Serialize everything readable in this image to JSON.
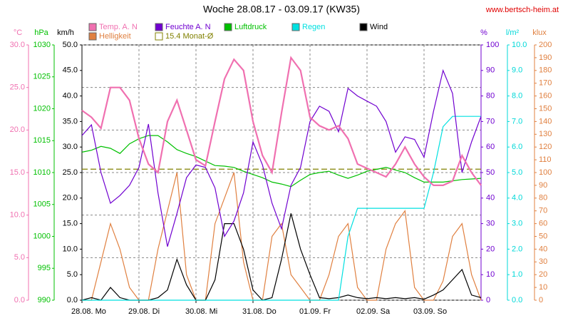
{
  "chart_data": {
    "type": "line",
    "title": "Woche 28.08.17 - 03.09.17 (KW35)",
    "source": "www.bertsch-heim.at",
    "grid": true,
    "xlim": [
      0,
      168
    ],
    "xticks": [
      {
        "value": 0,
        "label": "28.08. Mo"
      },
      {
        "value": 24,
        "label": "29.08. Di"
      },
      {
        "value": 48,
        "label": "30.08. Mi"
      },
      {
        "value": 72,
        "label": "31.08. Do"
      },
      {
        "value": 96,
        "label": "01.09. Fr"
      },
      {
        "value": 120,
        "label": "02.09. Sa"
      },
      {
        "value": 144,
        "label": "03.09. So"
      }
    ],
    "x": [
      0,
      4,
      8,
      12,
      16,
      20,
      24,
      28,
      32,
      36,
      40,
      44,
      48,
      52,
      56,
      60,
      64,
      68,
      72,
      76,
      80,
      84,
      88,
      92,
      96,
      100,
      104,
      108,
      112,
      116,
      120,
      124,
      128,
      132,
      136,
      140,
      144,
      148,
      152,
      156,
      160,
      164,
      168
    ],
    "axes": [
      {
        "label": "°C",
        "side": "left",
        "color": "#f070b0",
        "lim": [
          0,
          30
        ],
        "ticks": [
          {
            "value": 0,
            "label": "0.0"
          },
          {
            "value": 5,
            "label": "5.0"
          },
          {
            "value": 10,
            "label": "10.0"
          },
          {
            "value": 15,
            "label": "15.0"
          },
          {
            "value": 20,
            "label": "20.0"
          },
          {
            "value": 25,
            "label": "25.0"
          },
          {
            "value": 30,
            "label": "30.0"
          }
        ]
      },
      {
        "label": "hPa",
        "side": "left",
        "color": "#00c000",
        "lim": [
          990,
          1030
        ],
        "ticks": [
          990,
          995,
          1000,
          1005,
          1010,
          1015,
          1020,
          1025,
          1030
        ]
      },
      {
        "label": "km/h",
        "side": "left",
        "color": "#000000",
        "lim": [
          0,
          50
        ],
        "ticks": [
          {
            "value": 0,
            "label": "0.0"
          },
          {
            "value": 5,
            "label": "5.0"
          },
          {
            "value": 10,
            "label": "10.0"
          },
          {
            "value": 15,
            "label": "15.0"
          },
          {
            "value": 20,
            "label": "20.0"
          },
          {
            "value": 25,
            "label": "25.0"
          },
          {
            "value": 30,
            "label": "30.0"
          },
          {
            "value": 35,
            "label": "35.0"
          },
          {
            "value": 40,
            "label": "40.0"
          },
          {
            "value": 45,
            "label": "45.0"
          },
          {
            "value": 50,
            "label": "50.0"
          }
        ]
      },
      {
        "label": "%",
        "side": "right",
        "color": "#7000d0",
        "lim": [
          0,
          100
        ],
        "ticks": [
          0,
          10,
          20,
          30,
          40,
          50,
          60,
          70,
          80,
          90,
          100
        ]
      },
      {
        "label": "l/m²",
        "side": "right",
        "color": "#00d8d8",
        "lim": [
          0,
          10
        ],
        "ticks": [
          {
            "value": 0,
            "label": "0.0"
          },
          {
            "value": 1,
            "label": "1.0"
          },
          {
            "value": 2,
            "label": "2.0"
          },
          {
            "value": 3,
            "label": "3.0"
          },
          {
            "value": 4,
            "label": "4.0"
          },
          {
            "value": 5,
            "label": "5.0"
          },
          {
            "value": 6,
            "label": "6.0"
          },
          {
            "value": 7,
            "label": "7.0"
          },
          {
            "value": 8,
            "label": "8.0"
          },
          {
            "value": 9,
            "label": "9.0"
          },
          {
            "value": 10,
            "label": "10.0"
          }
        ]
      },
      {
        "label": "klux",
        "side": "right",
        "color": "#e08040",
        "lim": [
          0,
          200
        ],
        "ticks": [
          0,
          10,
          20,
          30,
          40,
          50,
          60,
          70,
          80,
          90,
          100,
          110,
          120,
          130,
          140,
          150,
          160,
          170,
          180,
          190,
          200
        ]
      }
    ],
    "series": [
      {
        "name": "Temp. A. N",
        "color": "#f070b0",
        "axis": "°C",
        "values": [
          22.3,
          21.5,
          20.2,
          25.0,
          25.0,
          23.5,
          19.0,
          16.0,
          15.0,
          21.0,
          23.5,
          20.0,
          16.5,
          15.8,
          21.0,
          26.0,
          28.3,
          27.0,
          21.0,
          17.0,
          15.0,
          22.0,
          28.5,
          27.0,
          21.5,
          20.5,
          20.0,
          20.5,
          19.0,
          16.0,
          15.5,
          15.0,
          14.5,
          16.0,
          18.0,
          16.0,
          14.5,
          13.5,
          13.5,
          14.0,
          17.0,
          15.0,
          13.5
        ]
      },
      {
        "name": "Feuchte A. N",
        "color": "#7000d0",
        "axis": "%",
        "values": [
          64.5,
          68.7,
          50,
          38,
          41,
          45,
          52,
          69,
          42,
          21,
          34,
          48,
          53,
          52,
          44,
          25,
          31,
          42,
          62,
          53,
          38,
          28,
          45,
          52,
          70,
          76,
          74,
          66,
          83,
          80,
          78,
          76,
          70,
          58,
          64,
          63,
          56,
          74,
          90,
          81,
          50,
          62,
          72
        ]
      },
      {
        "name": "Luftdruck",
        "color": "#00c000",
        "axis": "hPa",
        "values": [
          1013.2,
          1013.5,
          1014.1,
          1013.8,
          1013.0,
          1014.5,
          1015.3,
          1015.8,
          1015.8,
          1014.8,
          1013.6,
          1013.0,
          1012.5,
          1011.8,
          1011.1,
          1011.0,
          1010.8,
          1010.2,
          1009.7,
          1009.2,
          1008.5,
          1008.2,
          1007.8,
          1008.8,
          1009.7,
          1010.0,
          1010.2,
          1009.6,
          1009.1,
          1009.6,
          1010.2,
          1010.5,
          1010.8,
          1010.4,
          1010.0,
          1009.2,
          1008.5,
          1008.5,
          1008.5,
          1008.7,
          1008.9,
          1009.0,
          1009.1
        ]
      },
      {
        "name": "Regen",
        "color": "#00e0e0",
        "axis": "l/m²",
        "values": [
          0,
          0,
          0,
          0,
          0,
          0,
          0,
          0,
          0,
          0,
          0,
          0,
          0,
          0,
          0,
          0,
          0,
          0,
          0,
          0,
          0,
          0,
          0,
          0,
          0,
          0,
          0,
          0,
          2.5,
          3.6,
          3.6,
          3.6,
          3.6,
          3.6,
          3.6,
          3.6,
          3.6,
          5.0,
          6.8,
          7.2,
          7.2,
          7.2,
          7.2
        ]
      },
      {
        "name": "Wind",
        "color": "#000000",
        "axis": "km/h",
        "values": [
          0,
          0.5,
          0,
          2.5,
          0.5,
          0,
          0,
          0,
          0.5,
          2,
          8,
          3,
          0,
          0,
          4,
          15,
          15,
          10,
          2,
          0,
          0.5,
          8,
          17,
          10,
          5,
          0.5,
          0.3,
          0.5,
          1,
          0.5,
          0.3,
          0.5,
          0.3,
          0.5,
          0.3,
          0.5,
          0.2,
          1,
          2,
          4,
          6,
          1,
          0.5
        ]
      },
      {
        "name": "Helligkeit",
        "color": "#e08040",
        "axis": "klux",
        "values": [
          0,
          0,
          30,
          60,
          40,
          10,
          0,
          0,
          40,
          70,
          100,
          20,
          0,
          0,
          60,
          80,
          100,
          30,
          0,
          0,
          50,
          60,
          20,
          10,
          0,
          0,
          20,
          50,
          60,
          10,
          0,
          0,
          40,
          60,
          70,
          10,
          0,
          0,
          15,
          50,
          60,
          20,
          0
        ]
      }
    ],
    "reference_line": {
      "name": "15.4 Monat-Ø",
      "value": 15.4,
      "axis": "°C",
      "color": "#808000"
    }
  }
}
